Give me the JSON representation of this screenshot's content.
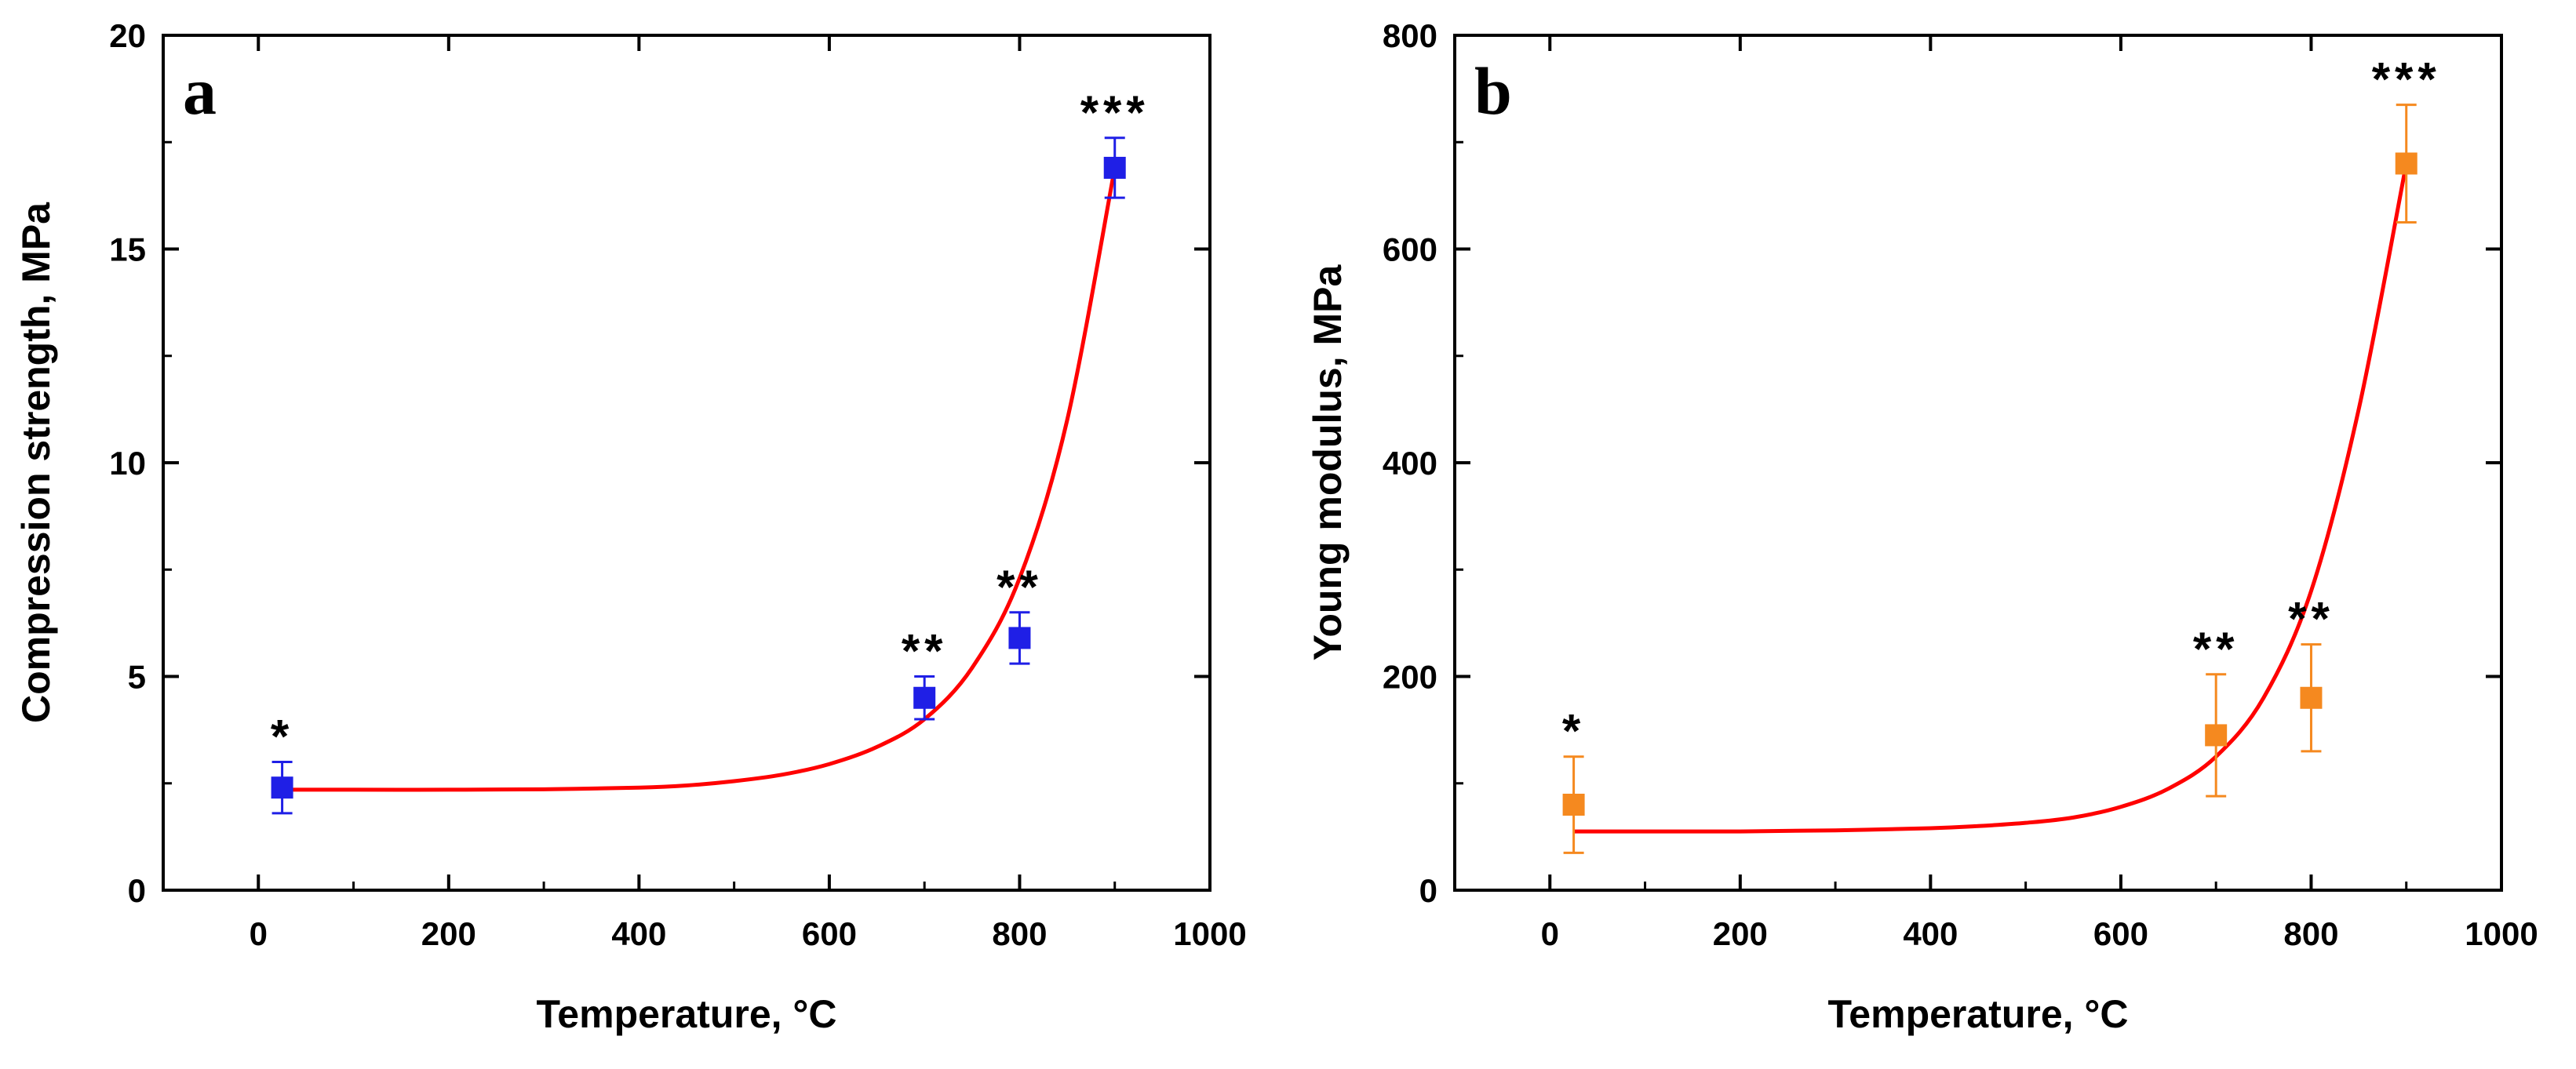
{
  "chart_data": [
    {
      "type": "scatter",
      "panel_label": "a",
      "xlabel": "Temperature, °C",
      "ylabel": "Compression strength, MPa",
      "xlim": [
        -100,
        1000
      ],
      "ylim": [
        0,
        20
      ],
      "xticks": [
        0,
        200,
        400,
        600,
        800,
        1000
      ],
      "yticks": [
        0,
        5,
        10,
        15,
        20
      ],
      "grid": false,
      "marker_color": "#1f1fe6",
      "fit_color": "#ff0000",
      "points": [
        {
          "x": 25,
          "y": 2.4,
          "err": 0.6,
          "annotation": "*"
        },
        {
          "x": 700,
          "y": 4.5,
          "err": 0.5,
          "annotation": "**"
        },
        {
          "x": 800,
          "y": 5.9,
          "err": 0.6,
          "annotation": "**"
        },
        {
          "x": 900,
          "y": 16.9,
          "err": 0.7,
          "annotation": "***"
        }
      ],
      "fit_curve": {
        "x": [
          25,
          100,
          200,
          300,
          400,
          450,
          500,
          550,
          600,
          650,
          700,
          750,
          800,
          850,
          900
        ],
        "y": [
          2.35,
          2.35,
          2.35,
          2.36,
          2.4,
          2.45,
          2.55,
          2.7,
          2.95,
          3.35,
          4.0,
          5.2,
          7.3,
          11.0,
          16.9
        ]
      }
    },
    {
      "type": "scatter",
      "panel_label": "b",
      "xlabel": "Temperature, °C",
      "ylabel": "Young modulus, MPa",
      "xlim": [
        -100,
        1000
      ],
      "ylim": [
        0,
        800
      ],
      "xticks": [
        0,
        200,
        400,
        600,
        800,
        1000
      ],
      "yticks": [
        0,
        200,
        400,
        600,
        800
      ],
      "grid": false,
      "marker_color": "#f5891f",
      "fit_color": "#ff0000",
      "points": [
        {
          "x": 25,
          "y": 80,
          "err": 45,
          "annotation": "*"
        },
        {
          "x": 700,
          "y": 145,
          "err": 57,
          "annotation": "**"
        },
        {
          "x": 800,
          "y": 180,
          "err": 50,
          "annotation": "**"
        },
        {
          "x": 900,
          "y": 680,
          "err": 55,
          "annotation": "***"
        }
      ],
      "fit_curve": {
        "x": [
          25,
          100,
          200,
          300,
          400,
          450,
          500,
          550,
          600,
          650,
          700,
          750,
          800,
          850,
          900
        ],
        "y": [
          55,
          55,
          55,
          56,
          58,
          60,
          63,
          68,
          78,
          95,
          125,
          180,
          280,
          450,
          680
        ]
      }
    }
  ]
}
